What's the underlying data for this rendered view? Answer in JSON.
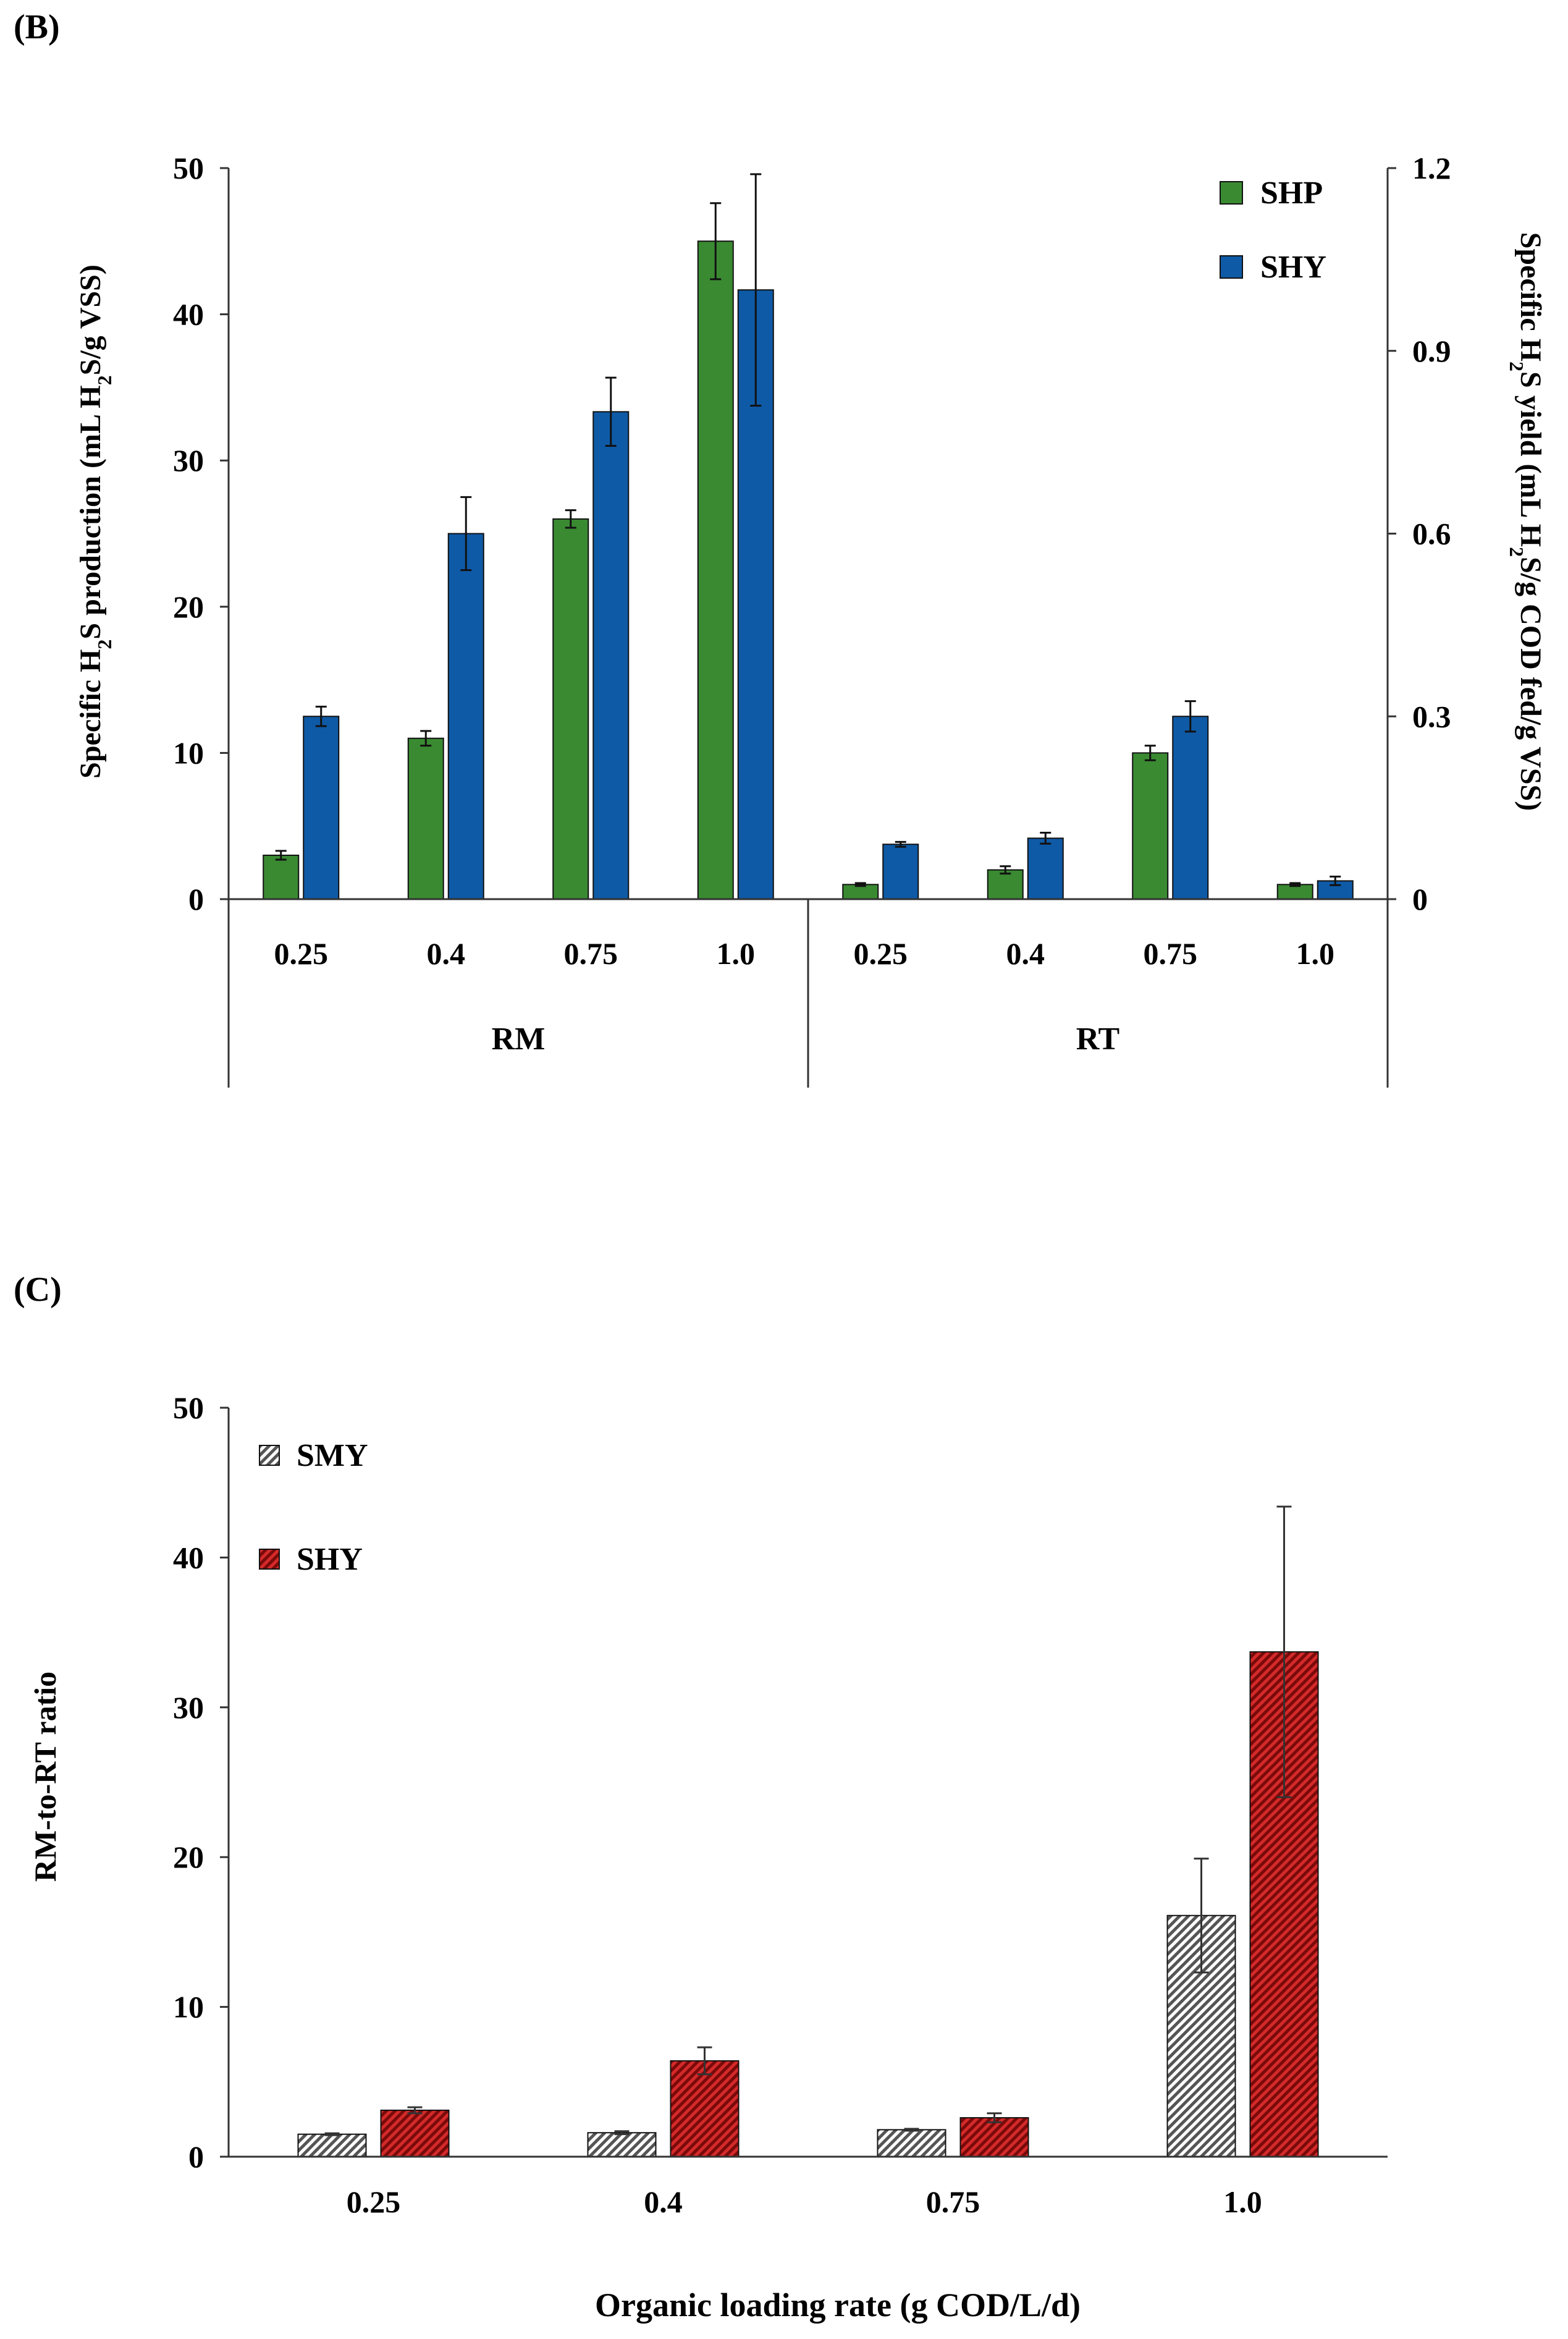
{
  "chart_data": [
    {
      "panel": "(B)",
      "type": "bar",
      "ylabel_left_parts": [
        "Specific H",
        "2",
        "S production (mL H",
        "2",
        "S/g VSS)"
      ],
      "ylabel_right_parts": [
        "Specific H",
        "2",
        "S yield (mL H",
        "2",
        "S/g COD fed/g VSS)"
      ],
      "ylim": [
        0,
        50
      ],
      "yticks": [
        "0",
        "10",
        "20",
        "30",
        "40",
        "50"
      ],
      "y2lim": [
        0,
        1.2
      ],
      "y2ticks": [
        "0",
        "0.3",
        "0.6",
        "0.9",
        "1.2"
      ],
      "groups": [
        {
          "label": "RM",
          "categories": [
            "0.25",
            "0.4",
            "0.75",
            "1.0"
          ]
        },
        {
          "label": "RT",
          "categories": [
            "0.25",
            "0.4",
            "0.75",
            "1.0"
          ]
        }
      ],
      "legend_position": "top-right",
      "grid": false,
      "series": [
        {
          "name": "SHP",
          "axis": "left",
          "color": "#3a8a32",
          "values": [
            3.0,
            11.0,
            26.0,
            45.0,
            1.0,
            2.0,
            10.0,
            1.0
          ],
          "errors": [
            0.3,
            0.5,
            0.6,
            2.6,
            0.1,
            0.25,
            0.5,
            0.1
          ]
        },
        {
          "name": "SHY",
          "axis": "right",
          "color": "#0f5aa6",
          "values": [
            0.3,
            0.6,
            0.8,
            1.0,
            0.09,
            0.1,
            0.3,
            0.03
          ],
          "errors": [
            0.016,
            0.06,
            0.056,
            0.19,
            0.004,
            0.009,
            0.025,
            0.007
          ]
        }
      ]
    },
    {
      "panel": "(C)",
      "type": "bar",
      "xlabel": "Organic loading rate (g COD/L/d)",
      "ylabel": "RM-to-RT ratio",
      "ylim": [
        0,
        50
      ],
      "yticks": [
        "0",
        "10",
        "20",
        "30",
        "40",
        "50"
      ],
      "categories": [
        "0.25",
        "0.4",
        "0.75",
        "1.0"
      ],
      "legend_position": "top-left",
      "grid": false,
      "series": [
        {
          "name": "SMY",
          "color": "#9a9a9a",
          "pattern": "hatched",
          "values": [
            1.5,
            1.6,
            1.8,
            16.1
          ],
          "errors": [
            0.06,
            0.1,
            0.06,
            3.8
          ]
        },
        {
          "name": "SHY",
          "color": "#b01818",
          "pattern": "hatched",
          "values": [
            3.1,
            6.4,
            2.6,
            33.7
          ],
          "errors": [
            0.2,
            0.9,
            0.3,
            9.7
          ]
        }
      ]
    }
  ]
}
